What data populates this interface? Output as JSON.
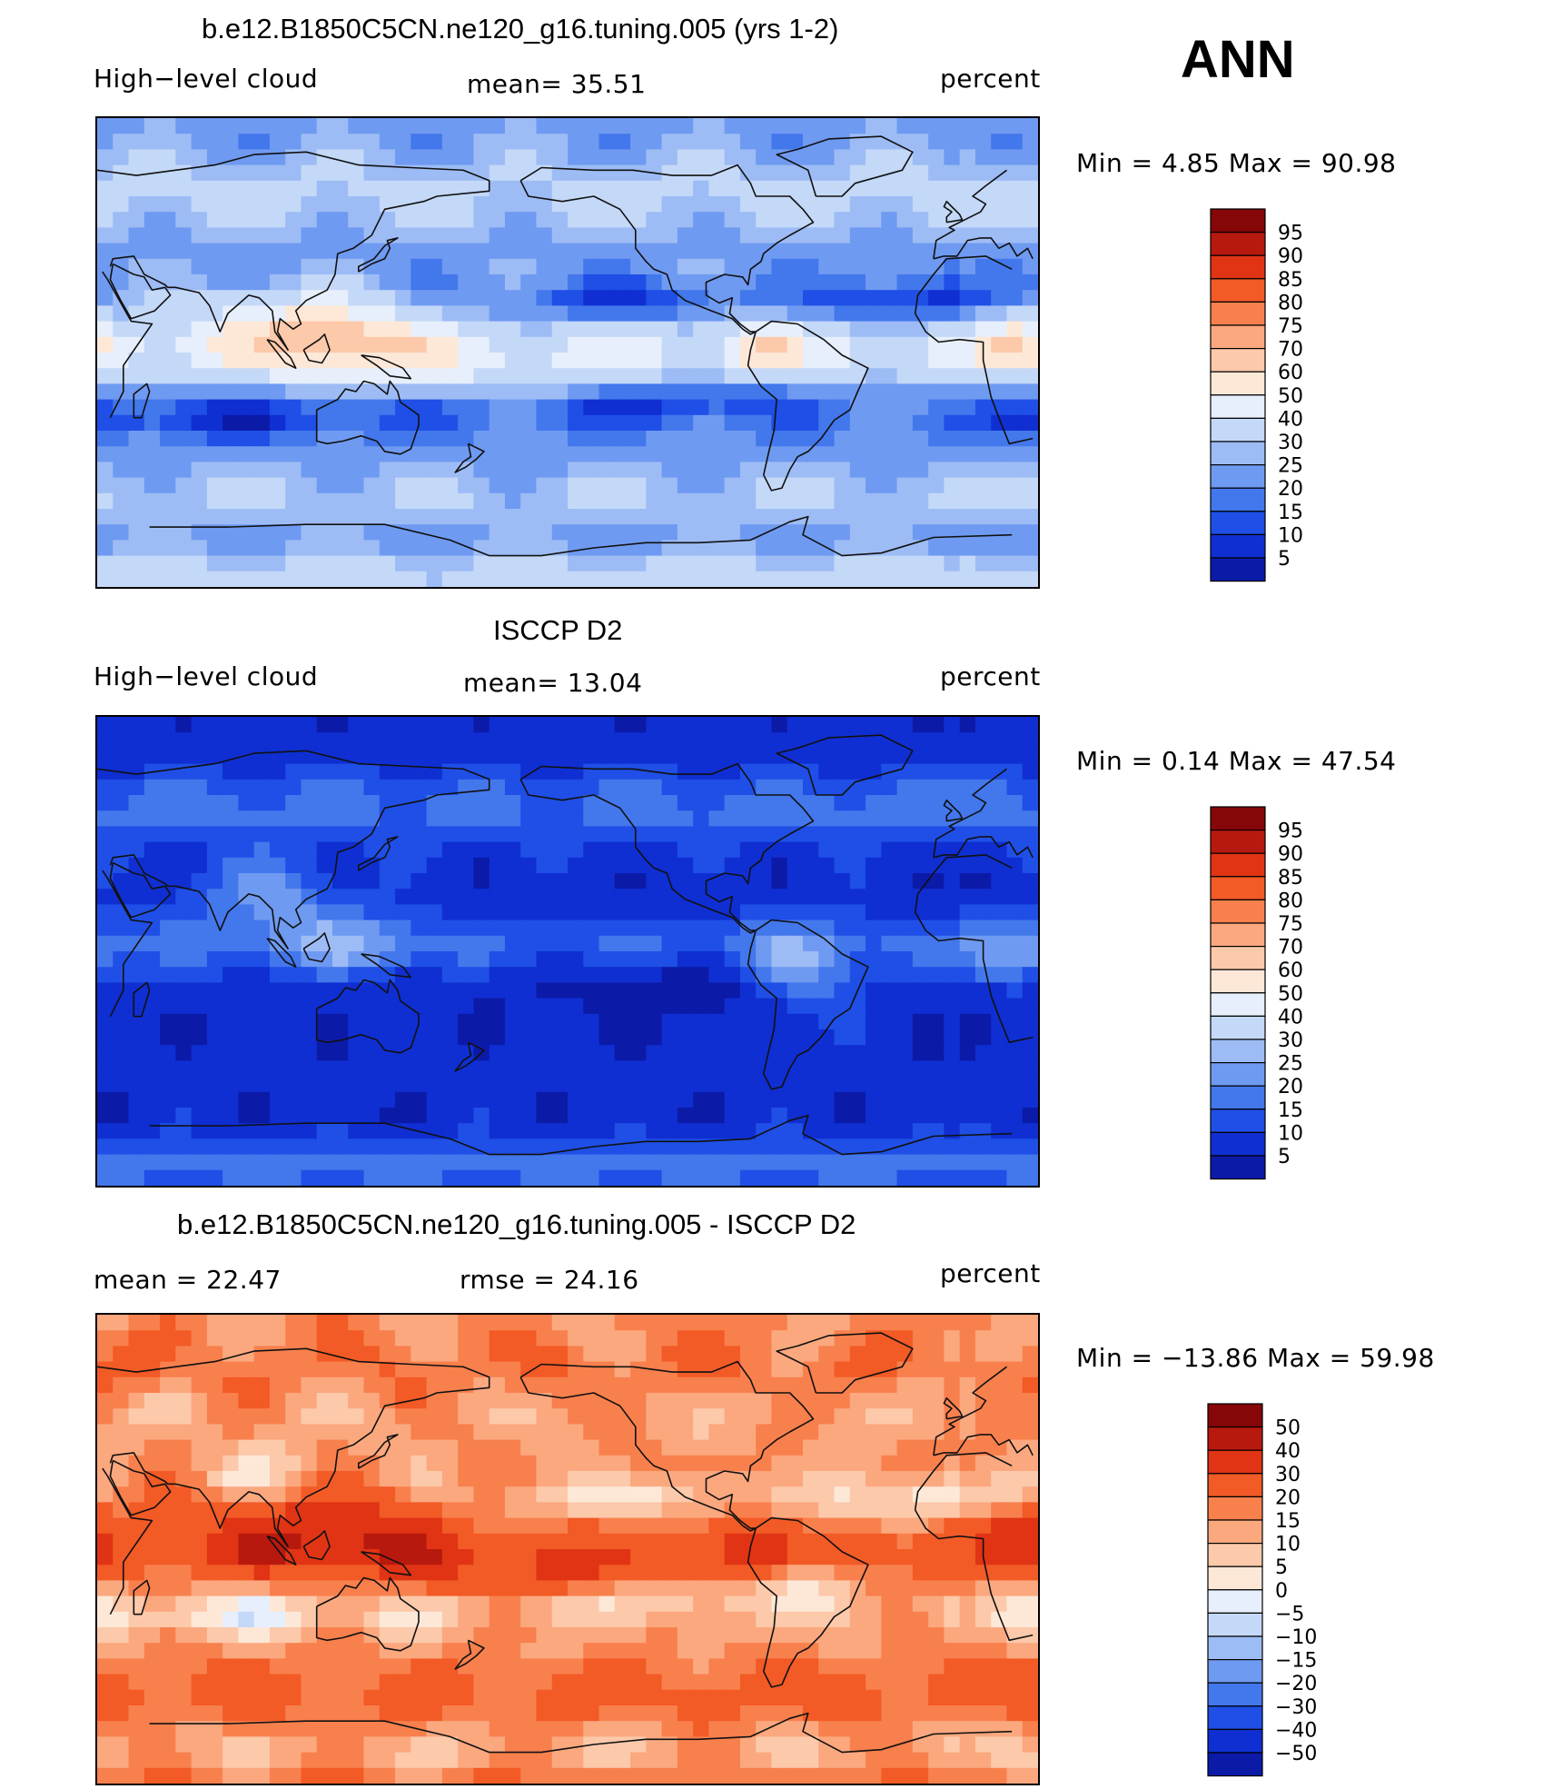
{
  "season": "ANN",
  "palettes": {
    "seq": [
      "#08066a",
      "#0c1aa8",
      "#0f2fd2",
      "#1f4fe6",
      "#4377ec",
      "#6f9af1",
      "#9dbcf5",
      "#c4d8f8",
      "#e6effb",
      "#fde8d8",
      "#fcc9aa",
      "#fba87f",
      "#f8804d",
      "#f25a26",
      "#e03414",
      "#b8190e",
      "#850708"
    ],
    "diff": [
      "#08066a",
      "#0c1aa8",
      "#0f2fd2",
      "#1f4fe6",
      "#4377ec",
      "#6f9af1",
      "#9dbcf5",
      "#c4d8f8",
      "#e6effb",
      "#fde8d8",
      "#fcc9aa",
      "#fba87f",
      "#f8804d",
      "#f25a26",
      "#e03414",
      "#b8190e",
      "#850708"
    ]
  },
  "panels": [
    {
      "title": "b.e12.B1850C5CN.ne120_g16.tuning.005 (yrs 1-2)",
      "left_label": "High−level cloud",
      "mean_label": "mean=   35.51",
      "units": "percent",
      "minmax": "Min  =     4.85  Max  =    90.98",
      "levels": [
        "95",
        "90",
        "85",
        "80",
        "75",
        "70",
        "60",
        "50",
        "40",
        "30",
        "25",
        "20",
        "15",
        "10",
        "5"
      ]
    },
    {
      "title": "ISCCP D2",
      "left_label": "High−level cloud",
      "mean_label": "mean=   13.04",
      "units": "percent",
      "minmax": "Min  =     0.14  Max  =    47.54",
      "levels": [
        "95",
        "90",
        "85",
        "80",
        "75",
        "70",
        "60",
        "50",
        "40",
        "30",
        "25",
        "20",
        "15",
        "10",
        "5"
      ]
    },
    {
      "title": "b.e12.B1850C5CN.ne120_g16.tuning.005 - ISCCP D2",
      "left_label": "mean  =    22.47",
      "mean_label": "rmse  =    24.16",
      "units": "percent",
      "minmax": "Min  = −13.86  Max  =    59.98",
      "levels": [
        "50",
        "40",
        "30",
        "20",
        "15",
        "10",
        "5",
        "0",
        "−5",
        "−10",
        "−15",
        "−20",
        "−30",
        "−40",
        "−50"
      ]
    }
  ],
  "chart_data": [
    {
      "type": "heatmap",
      "title": "b.e12.B1850C5CN.ne120_g16.tuning.005 (yrs 1-2)",
      "field": "High-level cloud",
      "units": "percent",
      "mean": 35.51,
      "min": 4.85,
      "max": 90.98,
      "contour_levels": [
        5,
        10,
        15,
        20,
        25,
        30,
        40,
        50,
        60,
        70,
        75,
        80,
        85,
        90,
        95
      ],
      "lon_range": [
        30,
        390
      ],
      "lat_range": [
        -90,
        90
      ]
    },
    {
      "type": "heatmap",
      "title": "ISCCP D2",
      "field": "High-level cloud",
      "units": "percent",
      "mean": 13.04,
      "min": 0.14,
      "max": 47.54,
      "contour_levels": [
        5,
        10,
        15,
        20,
        25,
        30,
        40,
        50,
        60,
        70,
        75,
        80,
        85,
        90,
        95
      ],
      "lon_range": [
        30,
        390
      ],
      "lat_range": [
        -90,
        90
      ]
    },
    {
      "type": "heatmap",
      "title": "b.e12.B1850C5CN.ne120_g16.tuning.005 - ISCCP D2",
      "units": "percent",
      "mean": 22.47,
      "rmse": 24.16,
      "min": -13.86,
      "max": 59.98,
      "contour_levels": [
        -50,
        -40,
        -30,
        -20,
        -15,
        -10,
        -5,
        0,
        5,
        10,
        15,
        20,
        30,
        40,
        50
      ],
      "lon_range": [
        30,
        390
      ],
      "lat_range": [
        -90,
        90
      ]
    }
  ]
}
